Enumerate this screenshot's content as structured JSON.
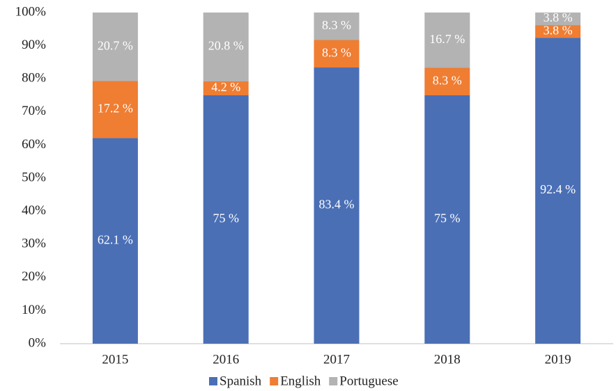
{
  "chart_data": {
    "type": "stacked_bar",
    "categories": [
      "2015",
      "2016",
      "2017",
      "2018",
      "2019"
    ],
    "series": [
      {
        "name": "Spanish",
        "color": "#4a6fb5",
        "values": [
          62.1,
          75,
          83.4,
          75,
          92.4
        ],
        "value_labels": [
          "62.1 %",
          "75 %",
          "83.4 %",
          "75 %",
          "92.4 %"
        ]
      },
      {
        "name": "English",
        "color": "#ef7d32",
        "values": [
          17.2,
          4.2,
          8.3,
          8.3,
          3.8
        ],
        "value_labels": [
          "17.2 %",
          "4.2 %",
          "8.3 %",
          "8.3 %",
          "3.8 %"
        ]
      },
      {
        "name": "Portuguese",
        "color": "#b3b3b3",
        "values": [
          20.7,
          20.8,
          8.3,
          16.7,
          3.8
        ],
        "value_labels": [
          "20.7 %",
          "20.8 %",
          "8.3 %",
          "16.7 %",
          "3.8 %"
        ]
      }
    ],
    "ylim": [
      0,
      100
    ],
    "yticks": [
      {
        "value": 0,
        "label": "0%"
      },
      {
        "value": 10,
        "label": "10%"
      },
      {
        "value": 20,
        "label": "20%"
      },
      {
        "value": 30,
        "label": "30%"
      },
      {
        "value": 40,
        "label": "40%"
      },
      {
        "value": 50,
        "label": "50%"
      },
      {
        "value": 60,
        "label": "60%"
      },
      {
        "value": 70,
        "label": "70%"
      },
      {
        "value": 80,
        "label": "80%"
      },
      {
        "value": 90,
        "label": "90%"
      },
      {
        "value": 100,
        "label": "100%"
      }
    ],
    "legend": "bottom"
  }
}
